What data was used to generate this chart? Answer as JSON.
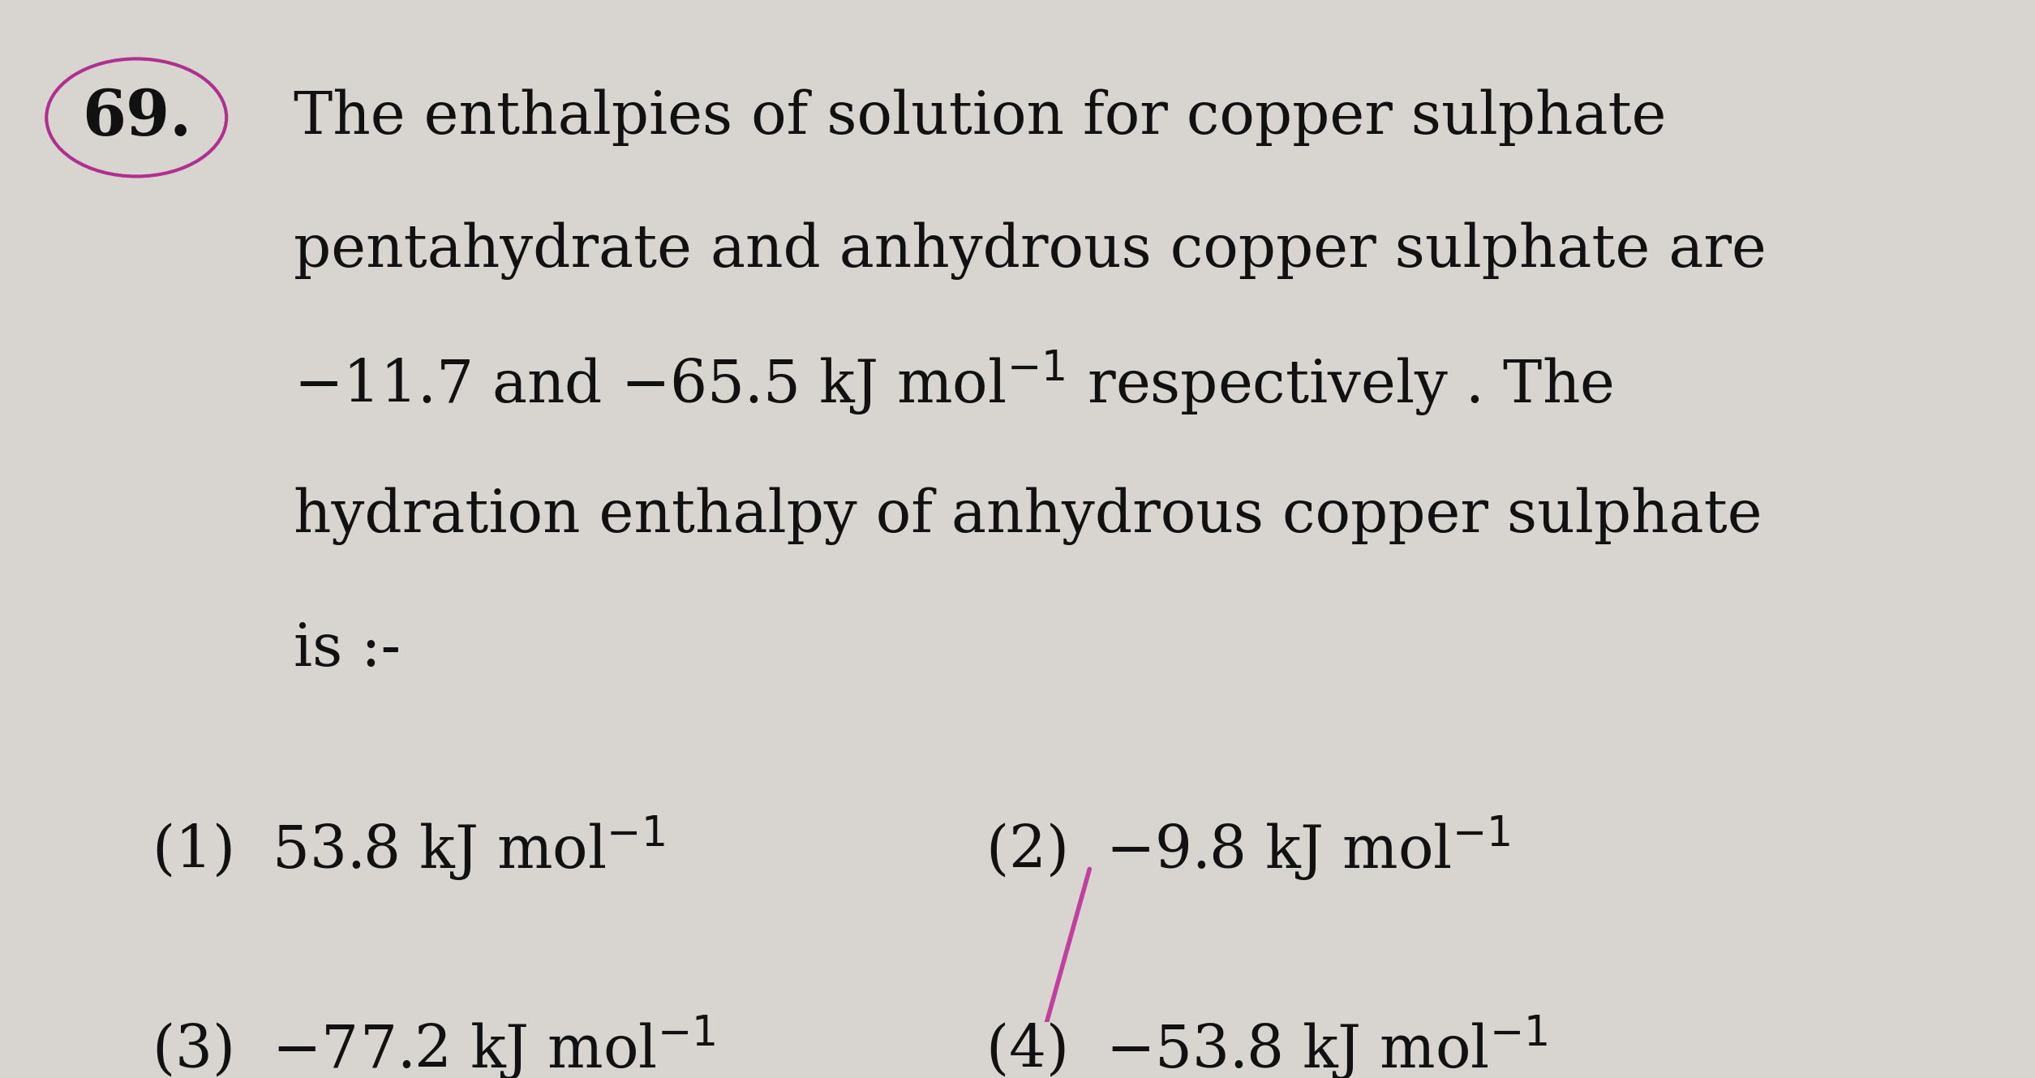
{
  "background_color": "#d8d5d0",
  "text_color": "#111111",
  "question_number": "69.",
  "circle_color": "#b03090",
  "line1": "The enthalpies of solution for copper sulphate",
  "line2": "pentahydrate and anhydrous copper sulphate are",
  "line3a": "$-$11.7 and $-$65.5 kJ mol$^{-1}$ respectively . The",
  "line4": "hydration enthalpy of anhydrous copper sulphate",
  "line5": "is :-",
  "opt1": "(1)  53.8 kJ mol$^{-1}$",
  "opt2": "(2)  $-$9.8 kJ mol$^{-1}$",
  "opt3": "(3)  $-$77.2 kJ mol$^{-1}$",
  "opt4": "(4)  $-$53.8 kJ mol$^{-1}$",
  "strike_color": "#c040a0",
  "font_size_main": 52,
  "font_size_qnum": 56,
  "font_size_options": 52
}
